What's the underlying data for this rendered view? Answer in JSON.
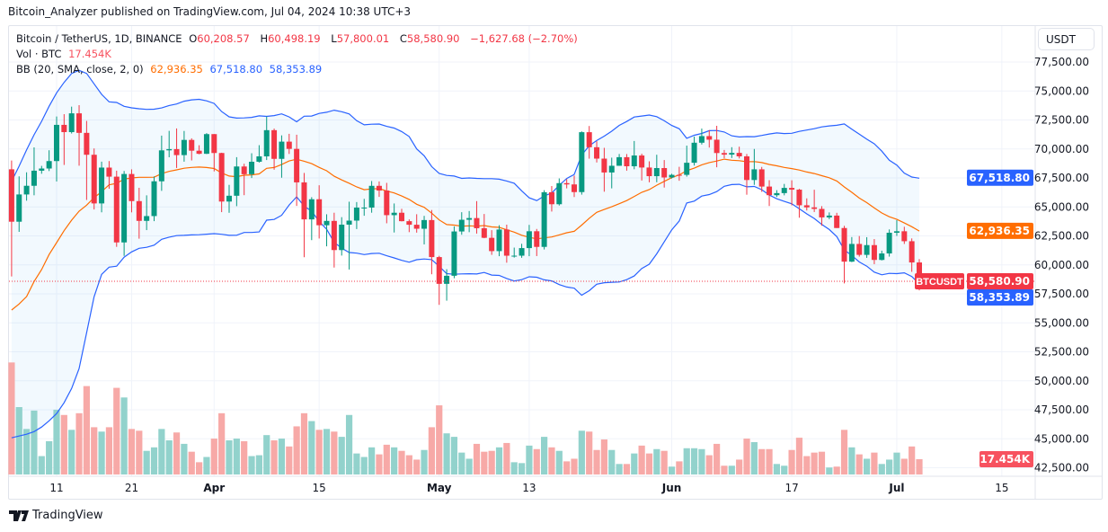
{
  "published": "Bitcoin_Analyzer published on TradingView.com, Jul 04, 2024 10:38 UTC+3",
  "legend": {
    "symbol": "Bitcoin / TetherUS, 1D, BINANCE",
    "o_label": "O",
    "o": "60,208.57",
    "h_label": "H",
    "h": "60,498.19",
    "l_label": "L",
    "l": "57,800.01",
    "c_label": "C",
    "c": "58,580.90",
    "change": "−1,627.68 (−2.70%)",
    "vol_label": "Vol · BTC",
    "vol": "17.454K",
    "bb_label": "BB (20, SMA, close, 2, 0)",
    "bb_basis": "62,936.35",
    "bb_upper": "67,518.80",
    "bb_lower": "58,353.89"
  },
  "currency_button": "USDT",
  "footer": {
    "brand": "TradingView",
    "logo_icon": "tradingview-logo-icon"
  },
  "colors": {
    "up": "#089981",
    "down": "#F23645",
    "vol_up": "#92D2CC",
    "vol_down": "#F7A9A7",
    "bb_band": "#2962FF",
    "bb_basis": "#FF6D00",
    "grid": "#F0F3FA"
  },
  "chart_data": {
    "type": "candlestick",
    "symbol_label": "BTCUSDT",
    "ylim": [
      41500,
      80000
    ],
    "grid": true,
    "price_ticks": [
      "77,500.00",
      "75,000.00",
      "72,500.00",
      "70,000.00",
      "67,500.00",
      "65,000.00",
      "62,500.00",
      "60,000.00",
      "57,500.00",
      "55,000.00",
      "52,500.00",
      "50,000.00",
      "47,500.00",
      "45,000.00",
      "42,500.00"
    ],
    "price_tick_values": [
      77500,
      75000,
      72500,
      70000,
      67500,
      65000,
      62500,
      60000,
      57500,
      55000,
      52500,
      50000,
      47500,
      45000,
      42500
    ],
    "time_ticks": [
      {
        "label": "11",
        "date": "2024-03-11",
        "bold": false
      },
      {
        "label": "21",
        "date": "2024-03-21",
        "bold": false
      },
      {
        "label": "Apr",
        "date": "2024-04-01",
        "bold": true
      },
      {
        "label": "15",
        "date": "2024-04-15",
        "bold": false
      },
      {
        "label": "May",
        "date": "2024-05-01",
        "bold": true
      },
      {
        "label": "13",
        "date": "2024-05-13",
        "bold": false
      },
      {
        "label": "Jun",
        "date": "2024-06-01",
        "bold": true
      },
      {
        "label": "17",
        "date": "2024-06-17",
        "bold": false
      },
      {
        "label": "Jul",
        "date": "2024-07-01",
        "bold": true
      },
      {
        "label": "15",
        "date": "2024-07-15",
        "bold": false
      }
    ],
    "axis_labels": [
      {
        "text": "67,518.80",
        "value": 67518.8,
        "color": "#2962FF"
      },
      {
        "text": "62,936.35",
        "value": 62936.35,
        "color": "#FF6D00"
      },
      {
        "text": "58,580.90",
        "value": 58580.9,
        "color": "#F23645"
      },
      {
        "text": "58,353.89",
        "value": 58353.89,
        "color": "#2962FF"
      }
    ],
    "volume_label": {
      "text": "17.454K",
      "color": "#F7525F"
    },
    "columns": [
      "date",
      "open",
      "high",
      "low",
      "close",
      "volume_k"
    ],
    "candles": [
      [
        "2024-03-05",
        68245,
        69000,
        59005,
        63724,
        128
      ],
      [
        "2024-03-06",
        63724,
        67637,
        62848,
        66074,
        77
      ],
      [
        "2024-03-07",
        66074,
        67985,
        65537,
        66823,
        52
      ],
      [
        "2024-03-08",
        66823,
        70136,
        66002,
        68124,
        73
      ],
      [
        "2024-03-09",
        68124,
        68541,
        67861,
        68313,
        21
      ],
      [
        "2024-03-10",
        68313,
        69887,
        68094,
        68955,
        38
      ],
      [
        "2024-03-11",
        68955,
        72800,
        67194,
        72078,
        74
      ],
      [
        "2024-03-12",
        72078,
        73000,
        68620,
        71452,
        68
      ],
      [
        "2024-03-13",
        71452,
        73650,
        71333,
        73072,
        51
      ],
      [
        "2024-03-14",
        73072,
        73777,
        68555,
        71388,
        70
      ],
      [
        "2024-03-15",
        71388,
        72419,
        65600,
        69499,
        101
      ],
      [
        "2024-03-16",
        69499,
        70043,
        64780,
        65300,
        54
      ],
      [
        "2024-03-17",
        65300,
        68904,
        64534,
        68393,
        49
      ],
      [
        "2024-03-18",
        68393,
        68956,
        66565,
        67609,
        54
      ],
      [
        "2024-03-19",
        67609,
        68124,
        61555,
        61937,
        99
      ],
      [
        "2024-03-20",
        61937,
        68100,
        60775,
        67840,
        88
      ],
      [
        "2024-03-21",
        67840,
        68240,
        64529,
        65501,
        52
      ],
      [
        "2024-03-22",
        65501,
        66650,
        62260,
        63796,
        50
      ],
      [
        "2024-03-23",
        63796,
        65999,
        63000,
        64209,
        27
      ],
      [
        "2024-03-24",
        64209,
        67628,
        63772,
        67210,
        31
      ],
      [
        "2024-03-25",
        67210,
        71150,
        66385,
        69880,
        52
      ],
      [
        "2024-03-26",
        69880,
        71561,
        69281,
        69988,
        39
      ],
      [
        "2024-03-27",
        69988,
        71769,
        68359,
        69469,
        48
      ],
      [
        "2024-03-28",
        69469,
        71552,
        68903,
        70780,
        35
      ],
      [
        "2024-03-29",
        70780,
        70916,
        69009,
        69850,
        26
      ],
      [
        "2024-03-30",
        69850,
        70321,
        69540,
        69582,
        14
      ],
      [
        "2024-03-31",
        69582,
        71366,
        69562,
        71280,
        20
      ],
      [
        "2024-04-01",
        71280,
        71288,
        68062,
        69650,
        41
      ],
      [
        "2024-04-02",
        69650,
        69674,
        64550,
        65463,
        70
      ],
      [
        "2024-04-03",
        65463,
        66903,
        64493,
        65963,
        39
      ],
      [
        "2024-04-04",
        65963,
        69291,
        65064,
        68487,
        41
      ],
      [
        "2024-04-05",
        68487,
        68725,
        66011,
        67820,
        38
      ],
      [
        "2024-04-06",
        67820,
        69629,
        67492,
        68896,
        21
      ],
      [
        "2024-04-07",
        68896,
        70326,
        68824,
        69360,
        22
      ],
      [
        "2024-04-08",
        69360,
        72797,
        69043,
        71620,
        45
      ],
      [
        "2024-04-09",
        71620,
        71758,
        68210,
        69146,
        39
      ],
      [
        "2024-04-10",
        69146,
        71172,
        67519,
        70631,
        41
      ],
      [
        "2024-04-11",
        70631,
        71305,
        69567,
        70006,
        32
      ],
      [
        "2024-04-12",
        70006,
        71227,
        65086,
        67116,
        55
      ],
      [
        "2024-04-13",
        67116,
        67931,
        60660,
        63924,
        70
      ],
      [
        "2024-04-14",
        63924,
        65840,
        62134,
        65661,
        61
      ],
      [
        "2024-04-15",
        65661,
        66868,
        62274,
        63419,
        51
      ],
      [
        "2024-04-16",
        63419,
        64365,
        61600,
        63793,
        52
      ],
      [
        "2024-04-17",
        63793,
        64499,
        59768,
        61277,
        49
      ],
      [
        "2024-04-18",
        61277,
        64117,
        60803,
        63470,
        43
      ],
      [
        "2024-04-19",
        63470,
        65450,
        59600,
        63818,
        68
      ],
      [
        "2024-04-20",
        63818,
        65419,
        63090,
        64941,
        24
      ],
      [
        "2024-04-21",
        64941,
        65695,
        64237,
        64941,
        20
      ],
      [
        "2024-04-22",
        64941,
        67233,
        64500,
        66819,
        31
      ],
      [
        "2024-04-23",
        66819,
        67199,
        65864,
        66414,
        23
      ],
      [
        "2024-04-24",
        66414,
        67075,
        63589,
        64289,
        34
      ],
      [
        "2024-04-25",
        64289,
        65297,
        62794,
        64498,
        31
      ],
      [
        "2024-04-26",
        64498,
        64837,
        63747,
        63770,
        27
      ],
      [
        "2024-04-27",
        63770,
        63923,
        62824,
        63462,
        22
      ],
      [
        "2024-04-28",
        63462,
        64369,
        62781,
        63118,
        17
      ],
      [
        "2024-04-29",
        63118,
        64228,
        61765,
        63866,
        28
      ],
      [
        "2024-04-30",
        63866,
        64734,
        59191,
        60672,
        54
      ],
      [
        "2024-05-01",
        60672,
        60780,
        56552,
        58364,
        79
      ],
      [
        "2024-05-02",
        58364,
        59625,
        56911,
        59060,
        47
      ],
      [
        "2024-05-03",
        59060,
        63320,
        58849,
        62882,
        43
      ],
      [
        "2024-05-04",
        62882,
        64544,
        62599,
        63892,
        25
      ],
      [
        "2024-05-05",
        63892,
        64646,
        62822,
        64038,
        18
      ],
      [
        "2024-05-06",
        64038,
        65500,
        62700,
        63162,
        35
      ],
      [
        "2024-05-07",
        63162,
        64390,
        62300,
        62334,
        26
      ],
      [
        "2024-05-08",
        62334,
        62995,
        60866,
        61187,
        27
      ],
      [
        "2024-05-09",
        61187,
        63420,
        60750,
        63049,
        31
      ],
      [
        "2024-05-10",
        63049,
        63469,
        60187,
        60792,
        36
      ],
      [
        "2024-05-11",
        60792,
        61490,
        60630,
        60793,
        14
      ],
      [
        "2024-05-12",
        60793,
        61819,
        60610,
        61448,
        13
      ],
      [
        "2024-05-13",
        61448,
        63450,
        60750,
        62901,
        33
      ],
      [
        "2024-05-14",
        62901,
        63099,
        60760,
        61552,
        29
      ],
      [
        "2024-05-15",
        61552,
        66444,
        61330,
        66267,
        43
      ],
      [
        "2024-05-16",
        66267,
        66800,
        64600,
        65231,
        31
      ],
      [
        "2024-05-17",
        65231,
        67459,
        65119,
        67051,
        27
      ],
      [
        "2024-05-18",
        67051,
        67400,
        66600,
        66940,
        15
      ],
      [
        "2024-05-19",
        66940,
        67700,
        65857,
        66279,
        18
      ],
      [
        "2024-05-20",
        66279,
        71515,
        66060,
        71446,
        50
      ],
      [
        "2024-05-21",
        71446,
        71979,
        69162,
        70148,
        49
      ],
      [
        "2024-05-22",
        70148,
        70666,
        68833,
        69166,
        28
      ],
      [
        "2024-05-23",
        69166,
        70096,
        66312,
        67969,
        40
      ],
      [
        "2024-05-24",
        67969,
        69250,
        66600,
        68549,
        28
      ],
      [
        "2024-05-25",
        68549,
        69566,
        68540,
        69290,
        12
      ],
      [
        "2024-05-26",
        69290,
        69562,
        68128,
        68507,
        12
      ],
      [
        "2024-05-27",
        68507,
        70687,
        68250,
        69436,
        24
      ],
      [
        "2024-05-28",
        69436,
        69591,
        67277,
        68398,
        33
      ],
      [
        "2024-05-29",
        68398,
        68935,
        67124,
        67652,
        24
      ],
      [
        "2024-05-30",
        67652,
        69500,
        67128,
        68352,
        29
      ],
      [
        "2024-05-31",
        68352,
        69042,
        66670,
        67540,
        27
      ],
      [
        "2024-06-01",
        67540,
        67860,
        67450,
        67766,
        9
      ],
      [
        "2024-06-02",
        67766,
        68460,
        67257,
        67765,
        15
      ],
      [
        "2024-06-03",
        67765,
        70288,
        67612,
        68809,
        30
      ],
      [
        "2024-06-04",
        68809,
        71063,
        68567,
        70537,
        30
      ],
      [
        "2024-06-05",
        70537,
        71758,
        70383,
        71108,
        29
      ],
      [
        "2024-06-06",
        71108,
        71625,
        70119,
        70799,
        22
      ],
      [
        "2024-06-07",
        70799,
        71997,
        68420,
        69647,
        35
      ],
      [
        "2024-06-08",
        69647,
        69914,
        69200,
        69512,
        10
      ],
      [
        "2024-06-09",
        69512,
        70152,
        69221,
        69660,
        10
      ],
      [
        "2024-06-10",
        69660,
        70195,
        69180,
        69362,
        17
      ],
      [
        "2024-06-11",
        69362,
        69567,
        66051,
        67321,
        41
      ],
      [
        "2024-06-12",
        67321,
        69999,
        66902,
        68243,
        37
      ],
      [
        "2024-06-13",
        68243,
        68450,
        66303,
        66756,
        29
      ],
      [
        "2024-06-14",
        66756,
        67307,
        65078,
        66011,
        29
      ],
      [
        "2024-06-15",
        66011,
        66445,
        65858,
        66191,
        12
      ],
      [
        "2024-06-16",
        66191,
        66983,
        66000,
        66640,
        10
      ],
      [
        "2024-06-17",
        66640,
        67298,
        65130,
        66490,
        28
      ],
      [
        "2024-06-18",
        66490,
        66556,
        64066,
        65140,
        42
      ],
      [
        "2024-06-19",
        65140,
        65738,
        64693,
        64960,
        21
      ],
      [
        "2024-06-20",
        64960,
        66482,
        64560,
        64828,
        25
      ],
      [
        "2024-06-21",
        64828,
        65066,
        63379,
        64096,
        26
      ],
      [
        "2024-06-22",
        64096,
        64525,
        63943,
        64252,
        8
      ],
      [
        "2024-06-23",
        64252,
        64491,
        63178,
        63180,
        9
      ],
      [
        "2024-06-24",
        63180,
        63369,
        58402,
        60277,
        51
      ],
      [
        "2024-06-25",
        60277,
        62400,
        60239,
        61806,
        31
      ],
      [
        "2024-06-26",
        61806,
        62487,
        60712,
        60864,
        23
      ],
      [
        "2024-06-27",
        60864,
        62389,
        60606,
        61706,
        18
      ],
      [
        "2024-06-28",
        61706,
        62225,
        60063,
        60427,
        25
      ],
      [
        "2024-06-29",
        60427,
        61224,
        60383,
        60986,
        12
      ],
      [
        "2024-06-30",
        60986,
        63058,
        60712,
        62772,
        17
      ],
      [
        "2024-07-01",
        62772,
        63861,
        62497,
        62900,
        25
      ],
      [
        "2024-07-02",
        62900,
        63288,
        61806,
        62041,
        18
      ],
      [
        "2024-07-03",
        62041,
        62282,
        59400,
        60208,
        32
      ],
      [
        "2024-07-04",
        60208.57,
        60498.19,
        57800.01,
        58580.9,
        17.454
      ]
    ],
    "bollinger": {
      "length": 20,
      "mult": 2,
      "first_19": {
        "upper": [
          67213,
          68508,
          69928,
          71221,
          72384,
          73675,
          74838,
          75742,
          76517,
          76776,
          76517,
          75613,
          74709,
          74063,
          74010,
          73675,
          73546,
          73468,
          73417
        ],
        "basis": [
          56104,
          56621,
          57267,
          58560,
          59593,
          60885,
          61919,
          62952,
          63857,
          64632,
          65149,
          65795,
          66312,
          66902,
          67035,
          67397,
          67500,
          67551,
          67551
        ],
        "lower": [
          45078,
          45233,
          45388,
          45620,
          46008,
          46550,
          47171,
          48101,
          49341,
          51047,
          54147,
          57248,
          59186,
          59806,
          59884,
          60659,
          61124,
          61434,
          61512
        ]
      }
    }
  }
}
